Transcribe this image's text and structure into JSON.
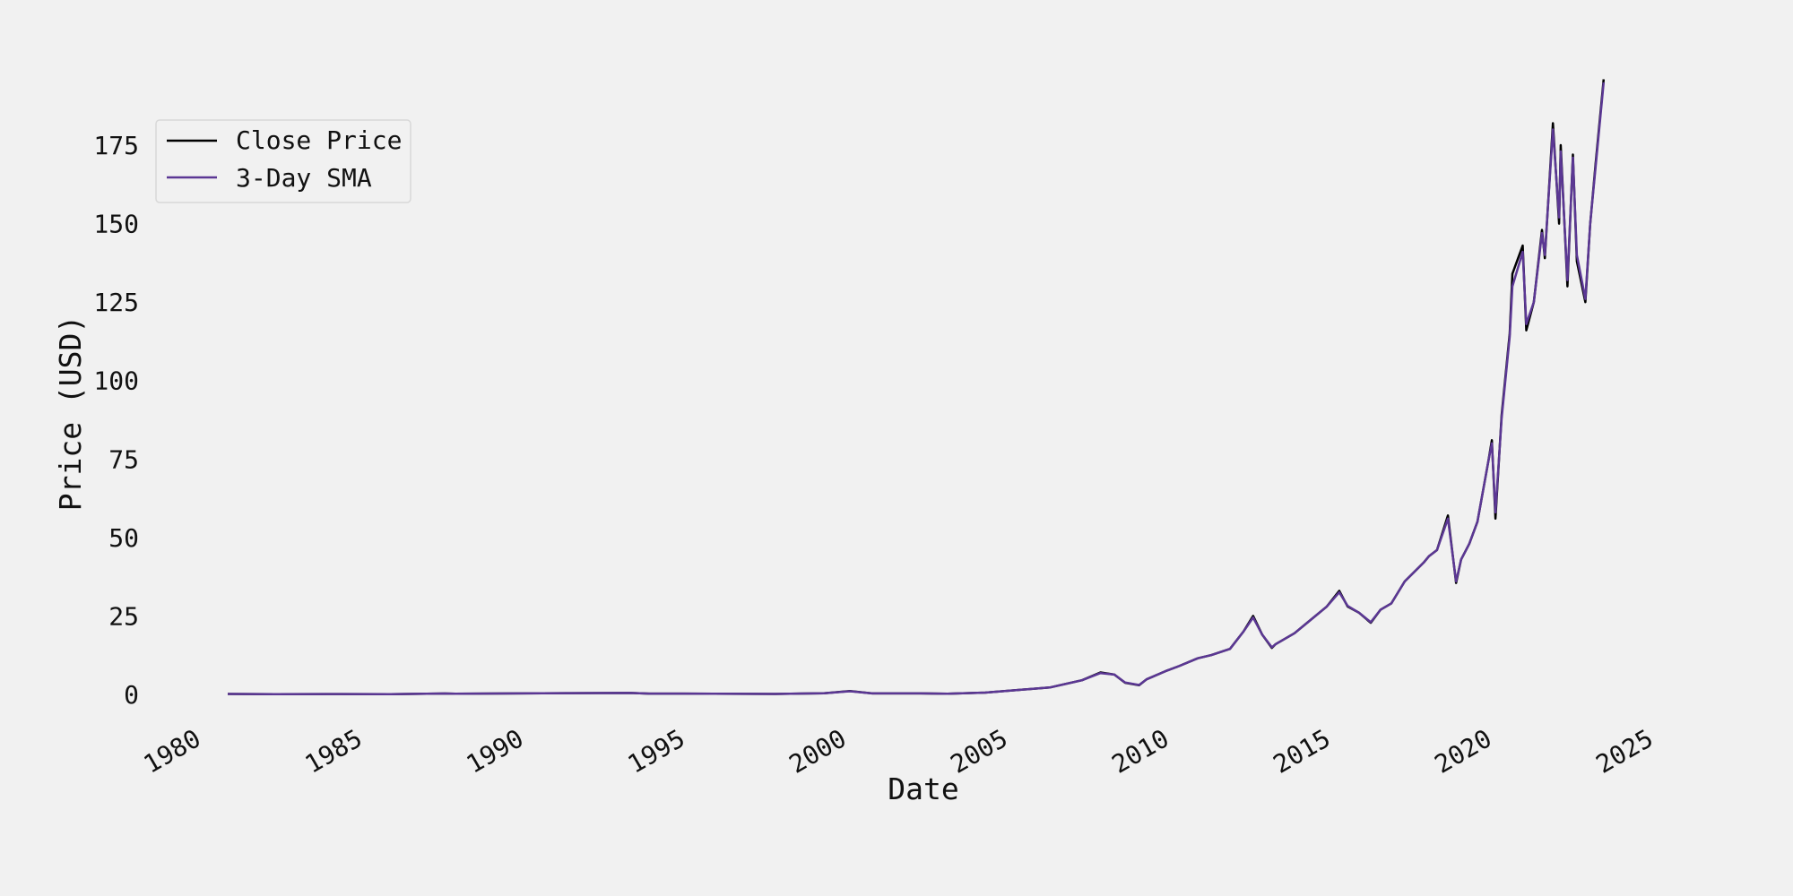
{
  "chart_data": {
    "type": "line",
    "title": "",
    "xlabel": "Date",
    "ylabel": "Price (USD)",
    "xlim": [
      "1980-01-01",
      "2025-01-01"
    ],
    "ylim": [
      -10,
      187
    ],
    "x_ticks": [
      "1980",
      "1985",
      "1990",
      "1995",
      "2000",
      "2005",
      "2010",
      "2015",
      "2020",
      "2025"
    ],
    "y_ticks": [
      0,
      25,
      50,
      75,
      100,
      125,
      150,
      175
    ],
    "grid": false,
    "legend": {
      "position": "upper-left"
    },
    "colors": {
      "close": "#000000",
      "sma": "#5b3794",
      "background": "#f1f1f1"
    },
    "series": [
      {
        "name": "Close Price",
        "x": [
          "1980-12-12",
          "1982-06-01",
          "1984-01-01",
          "1986-01-01",
          "1987-09-01",
          "1988-01-01",
          "1990-01-01",
          "1991-06-01",
          "1993-06-01",
          "1994-01-01",
          "1996-01-01",
          "1997-12-01",
          "1999-06-01",
          "2000-03-22",
          "2000-12-01",
          "2002-06-01",
          "2003-04-01",
          "2004-06-01",
          "2005-06-01",
          "2006-06-01",
          "2007-06-01",
          "2007-12-27",
          "2008-06-01",
          "2008-10-01",
          "2009-03-09",
          "2009-06-01",
          "2010-01-01",
          "2010-06-01",
          "2011-01-01",
          "2011-06-01",
          "2012-01-01",
          "2012-06-01",
          "2012-09-19",
          "2013-01-01",
          "2013-04-19",
          "2013-06-01",
          "2014-01-01",
          "2014-06-01",
          "2015-01-01",
          "2015-05-22",
          "2015-08-24",
          "2016-01-01",
          "2016-05-12",
          "2016-09-01",
          "2017-01-01",
          "2017-06-01",
          "2018-01-01",
          "2018-03-01",
          "2018-06-01",
          "2018-10-03",
          "2019-01-03",
          "2019-03-01",
          "2019-06-01",
          "2019-09-01",
          "2020-01-01",
          "2020-02-12",
          "2020-03-23",
          "2020-06-01",
          "2020-09-01",
          "2020-10-01",
          "2021-01-26",
          "2021-03-08",
          "2021-06-01",
          "2021-09-01",
          "2021-10-04",
          "2022-01-03",
          "2022-03-14",
          "2022-04-01",
          "2022-06-16",
          "2022-08-17",
          "2022-10-01",
          "2023-01-05",
          "2023-03-01",
          "2023-05-01",
          "2023-07-31"
        ],
        "values": [
          0.13,
          0.08,
          0.11,
          0.09,
          0.28,
          0.2,
          0.3,
          0.4,
          0.45,
          0.25,
          0.22,
          0.14,
          0.35,
          1.05,
          0.3,
          0.3,
          0.22,
          0.55,
          1.4,
          2.2,
          4.5,
          7.0,
          6.3,
          3.7,
          2.9,
          4.8,
          7.4,
          9.0,
          11.5,
          12.5,
          14.5,
          20.0,
          25.0,
          19.0,
          14.8,
          16.0,
          19.5,
          23.0,
          28.0,
          33.0,
          28.0,
          26.0,
          22.8,
          27.0,
          29.0,
          36.0,
          42.0,
          44.0,
          46.0,
          57.0,
          35.5,
          43.0,
          48.0,
          55.0,
          74.0,
          81.0,
          56.0,
          89.0,
          115.0,
          134.0,
          143.0,
          116.0,
          125.0,
          148.0,
          139.0,
          182.0,
          150.0,
          175.0,
          130.0,
          172.0,
          138.0,
          125.0,
          150.0,
          169.0,
          196.0
        ]
      },
      {
        "name": "3-Day SMA",
        "x": [
          "1980-12-12",
          "1982-06-01",
          "1984-01-01",
          "1986-01-01",
          "1987-09-01",
          "1988-01-01",
          "1990-01-01",
          "1991-06-01",
          "1993-06-01",
          "1994-01-01",
          "1996-01-01",
          "1997-12-01",
          "1999-06-01",
          "2000-03-22",
          "2000-12-01",
          "2002-06-01",
          "2003-04-01",
          "2004-06-01",
          "2005-06-01",
          "2006-06-01",
          "2007-06-01",
          "2007-12-27",
          "2008-06-01",
          "2008-10-01",
          "2009-03-09",
          "2009-06-01",
          "2010-01-01",
          "2010-06-01",
          "2011-01-01",
          "2011-06-01",
          "2012-01-01",
          "2012-06-01",
          "2012-09-19",
          "2013-01-01",
          "2013-04-19",
          "2013-06-01",
          "2014-01-01",
          "2014-06-01",
          "2015-01-01",
          "2015-05-22",
          "2015-08-24",
          "2016-01-01",
          "2016-05-12",
          "2016-09-01",
          "2017-01-01",
          "2017-06-01",
          "2018-01-01",
          "2018-03-01",
          "2018-06-01",
          "2018-10-03",
          "2019-01-03",
          "2019-03-01",
          "2019-06-01",
          "2019-09-01",
          "2020-01-01",
          "2020-02-12",
          "2020-03-23",
          "2020-06-01",
          "2020-09-01",
          "2020-10-01",
          "2021-01-26",
          "2021-03-08",
          "2021-06-01",
          "2021-09-01",
          "2021-10-04",
          "2022-01-03",
          "2022-03-14",
          "2022-04-01",
          "2022-06-16",
          "2022-08-17",
          "2022-10-01",
          "2023-01-05",
          "2023-03-01",
          "2023-05-01",
          "2023-07-31"
        ],
        "values": [
          0.13,
          0.08,
          0.11,
          0.09,
          0.27,
          0.2,
          0.3,
          0.4,
          0.45,
          0.25,
          0.22,
          0.14,
          0.35,
          1.0,
          0.3,
          0.3,
          0.22,
          0.55,
          1.4,
          2.2,
          4.5,
          6.8,
          6.3,
          3.8,
          3.0,
          4.8,
          7.4,
          9.0,
          11.5,
          12.5,
          14.5,
          20.0,
          24.5,
          19.0,
          15.0,
          16.0,
          19.5,
          23.0,
          28.0,
          32.5,
          28.2,
          26.0,
          23.0,
          27.0,
          29.0,
          36.0,
          42.0,
          44.0,
          46.0,
          56.0,
          36.0,
          43.0,
          48.0,
          55.0,
          74.0,
          80.0,
          58.0,
          88.0,
          114.0,
          130.0,
          141.0,
          118.0,
          125.0,
          147.0,
          140.0,
          180.0,
          152.0,
          173.0,
          132.0,
          171.0,
          140.0,
          126.0,
          150.0,
          168.0,
          195.0
        ]
      }
    ]
  }
}
